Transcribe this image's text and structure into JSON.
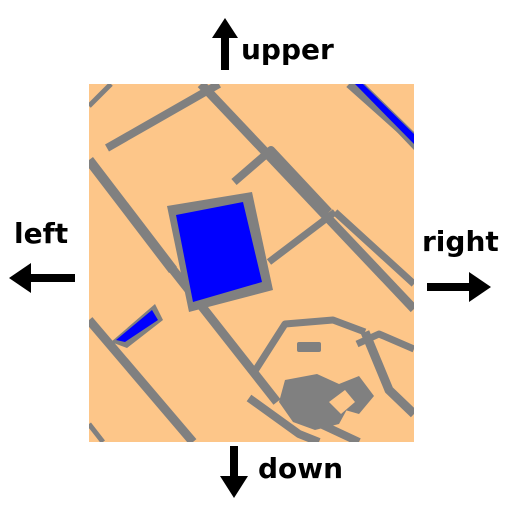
{
  "directions": {
    "upper": "upper",
    "left": "left",
    "right": "right",
    "down": "down"
  },
  "colors": {
    "land": "#FDC689",
    "road": "#808080",
    "water": "#0000FF",
    "arrow": "#000000",
    "text": "#000000"
  },
  "icons": {
    "upper": "arrow-up-icon",
    "left": "arrow-left-icon",
    "right": "arrow-right-icon",
    "down": "arrow-down-icon"
  }
}
